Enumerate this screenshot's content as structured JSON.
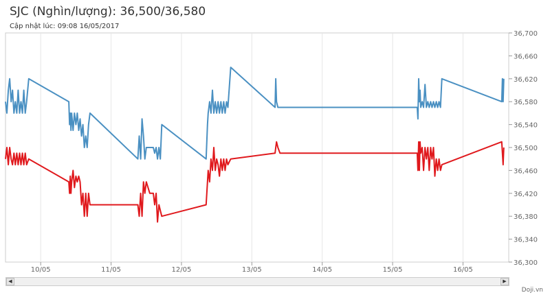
{
  "header": {
    "title": "SJC (Nghìn/lượng): 36,500/36,580",
    "subtitle": "Cập nhật lúc: 09:08 16/05/2017"
  },
  "footer": {
    "credit": "Doji.vn"
  },
  "scrollbar": {
    "left_icon": "◀",
    "right_icon": "▶"
  },
  "chart_data": {
    "type": "line",
    "xlabel": "",
    "ylabel": "",
    "ylim": [
      36300,
      36700
    ],
    "yticks": [
      36300,
      36340,
      36380,
      36420,
      36460,
      36500,
      36540,
      36580,
      36620,
      36660,
      36700
    ],
    "ytick_labels": [
      "36,300",
      "36,340",
      "36,380",
      "36,420",
      "36,460",
      "36,500",
      "36,540",
      "36,580",
      "36,620",
      "36,660",
      "36,700"
    ],
    "xlim": [
      9.5,
      16.65
    ],
    "xticks": [
      10,
      11,
      12,
      13,
      14,
      15,
      16
    ],
    "xtick_labels": [
      "10/05",
      "11/05",
      "12/05",
      "13/05",
      "14/05",
      "15/05",
      "16/05"
    ],
    "grid": "vertical",
    "legend": "none",
    "series": [
      {
        "color": "#4a90c2",
        "x": [
          9.5,
          9.52,
          9.54,
          9.56,
          9.58,
          9.6,
          9.62,
          9.64,
          9.66,
          9.68,
          9.7,
          9.72,
          9.74,
          9.76,
          9.78,
          9.8,
          9.83,
          10.4,
          10.41,
          10.42,
          10.43,
          10.44,
          10.46,
          10.48,
          10.5,
          10.52,
          10.54,
          10.56,
          10.58,
          10.6,
          10.62,
          10.64,
          10.66,
          10.68,
          10.7,
          11.38,
          11.4,
          11.42,
          11.44,
          11.46,
          11.48,
          11.5,
          11.55,
          11.6,
          11.62,
          11.64,
          11.66,
          11.68,
          11.7,
          11.72,
          12.35,
          12.37,
          12.38,
          12.4,
          12.42,
          12.44,
          12.46,
          12.48,
          12.5,
          12.52,
          12.54,
          12.56,
          12.58,
          12.6,
          12.62,
          12.64,
          12.66,
          12.7,
          13.33,
          13.34,
          13.35,
          13.37,
          13.4,
          15.35,
          15.36,
          15.37,
          15.38,
          15.39,
          15.4,
          15.42,
          15.44,
          15.46,
          15.48,
          15.5,
          15.52,
          15.54,
          15.56,
          15.58,
          15.6,
          15.62,
          15.64,
          15.66,
          15.68,
          15.7,
          16.55,
          16.56,
          16.57,
          16.58
        ],
        "values": [
          36580,
          36560,
          36600,
          36620,
          36580,
          36600,
          36560,
          36580,
          36560,
          36600,
          36560,
          36580,
          36560,
          36600,
          36560,
          36580,
          36620,
          36580,
          36540,
          36560,
          36530,
          36560,
          36530,
          36560,
          36540,
          36560,
          36530,
          36550,
          36520,
          36540,
          36500,
          36520,
          36500,
          36540,
          36560,
          36480,
          36520,
          36480,
          36550,
          36520,
          36480,
          36500,
          36500,
          36500,
          36490,
          36500,
          36480,
          36500,
          36480,
          36540,
          36480,
          36540,
          36560,
          36580,
          36560,
          36600,
          36560,
          36580,
          36560,
          36580,
          36560,
          36580,
          36560,
          36580,
          36560,
          36580,
          36570,
          36640,
          36570,
          36620,
          36580,
          36570,
          36570,
          36570,
          36550,
          36620,
          36580,
          36600,
          36570,
          36580,
          36570,
          36610,
          36570,
          36580,
          36570,
          36580,
          36570,
          36580,
          36570,
          36580,
          36570,
          36580,
          36570,
          36620,
          36580,
          36620,
          36580,
          36620
        ]
      },
      {
        "color": "#e0191d",
        "x": [
          9.5,
          9.52,
          9.54,
          9.56,
          9.58,
          9.6,
          9.62,
          9.64,
          9.66,
          9.68,
          9.7,
          9.72,
          9.74,
          9.76,
          9.78,
          9.8,
          9.83,
          10.4,
          10.41,
          10.42,
          10.43,
          10.44,
          10.46,
          10.48,
          10.5,
          10.52,
          10.54,
          10.56,
          10.58,
          10.6,
          10.62,
          10.64,
          10.66,
          10.68,
          10.7,
          11.38,
          11.4,
          11.42,
          11.44,
          11.46,
          11.48,
          11.5,
          11.55,
          11.6,
          11.62,
          11.64,
          11.66,
          11.68,
          11.7,
          11.72,
          12.35,
          12.37,
          12.38,
          12.4,
          12.42,
          12.44,
          12.46,
          12.48,
          12.5,
          12.52,
          12.54,
          12.56,
          12.58,
          12.6,
          12.62,
          12.64,
          12.66,
          12.7,
          13.33,
          13.34,
          13.35,
          13.37,
          13.4,
          15.35,
          15.36,
          15.37,
          15.38,
          15.39,
          15.4,
          15.42,
          15.44,
          15.46,
          15.48,
          15.5,
          15.52,
          15.54,
          15.56,
          15.58,
          15.6,
          15.62,
          15.64,
          15.66,
          15.68,
          15.7,
          16.55,
          16.56,
          16.57,
          16.58
        ],
        "values": [
          36480,
          36500,
          36470,
          36500,
          36480,
          36470,
          36490,
          36470,
          36490,
          36470,
          36490,
          36470,
          36490,
          36470,
          36490,
          36470,
          36480,
          36440,
          36420,
          36450,
          36420,
          36440,
          36460,
          36430,
          36450,
          36440,
          36450,
          36440,
          36400,
          36420,
          36380,
          36420,
          36380,
          36420,
          36400,
          36400,
          36380,
          36420,
          36380,
          36440,
          36420,
          36440,
          36420,
          36420,
          36400,
          36420,
          36370,
          36400,
          36390,
          36380,
          36400,
          36440,
          36460,
          36440,
          36480,
          36460,
          36500,
          36460,
          36480,
          36470,
          36450,
          36480,
          36460,
          36480,
          36460,
          36480,
          36470,
          36480,
          36490,
          36500,
          36510,
          36500,
          36490,
          36490,
          36460,
          36510,
          36460,
          36510,
          36490,
          36500,
          36460,
          36500,
          36480,
          36500,
          36460,
          36500,
          36480,
          36500,
          36450,
          36480,
          36460,
          36480,
          36460,
          36470,
          36510,
          36490,
          36470,
          36500
        ]
      }
    ]
  }
}
